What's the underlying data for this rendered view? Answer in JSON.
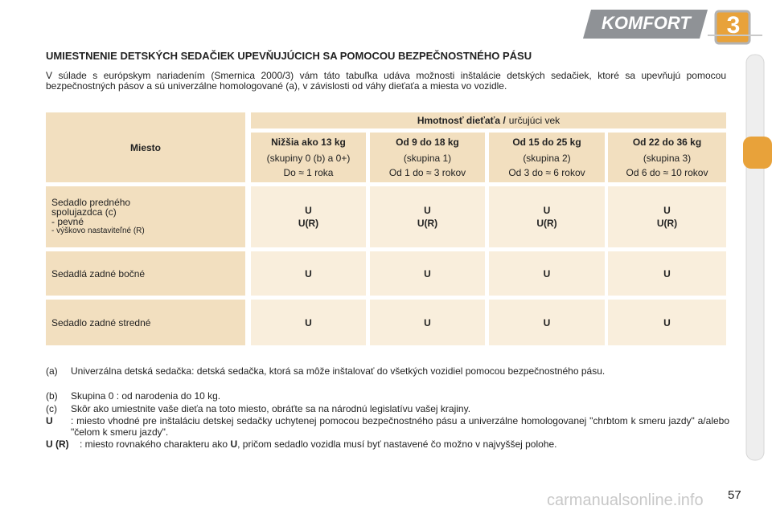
{
  "header": {
    "section": "KOMFORT",
    "chapter": "3"
  },
  "title": "UMIESTNENIE DETSKÝCH SEDAČIEK UPEVŇUJÚCICH SA POMOCOU BEZPEČNOSTNÉHO PÁSU",
  "intro": "V súlade s európskym nariadením (Smernica 2000/3) vám táto tabuľka udáva možnosti inštalácie detských sedačiek, ktoré sa upevňujú pomocou bezpečnostných pásov a sú univerzálne homologované (a), v závislosti od váhy dieťaťa a miesta vo vozidle.",
  "table": {
    "corner": "Miesto",
    "group_header": {
      "bold": "Hmotnosť dieťaťa /",
      "normal": "určujúci vek"
    },
    "columns": [
      {
        "title": "Nižšia ako 13 kg",
        "lines": [
          "(skupiny 0 (b) a 0+)",
          "Do ≈ 1 roka"
        ]
      },
      {
        "title": "Od 9 do 18 kg",
        "lines": [
          "(skupina 1)",
          "Od 1 do ≈ 3 rokov"
        ]
      },
      {
        "title": "Od 15 do 25 kg",
        "lines": [
          "(skupina 2)",
          "Od 3 do ≈ 6 rokov"
        ]
      },
      {
        "title": "Od 22 do 36 kg",
        "lines": [
          "(skupina 3)",
          "Od 6 do ≈ 10 rokov"
        ]
      }
    ],
    "rows": [
      {
        "label": [
          "Sedadlo predného",
          "spolujazdca (c)",
          "- pevné",
          "- výškovo nastaviteľné (R)"
        ],
        "cells": [
          [
            "U",
            "U(R)"
          ],
          [
            "U",
            "U(R)"
          ],
          [
            "U",
            "U(R)"
          ],
          [
            "U",
            "U(R)"
          ]
        ]
      },
      {
        "label": [
          "Sedadlá zadné bočné"
        ],
        "cells": [
          [
            "U"
          ],
          [
            "U"
          ],
          [
            "U"
          ],
          [
            "U"
          ]
        ]
      },
      {
        "label": [
          "Sedadlo zadné stredné"
        ],
        "cells": [
          [
            "U"
          ],
          [
            "U"
          ],
          [
            "U"
          ],
          [
            "U"
          ]
        ]
      }
    ]
  },
  "footnotes": [
    {
      "key": "(a)",
      "text": "Univerzálna detská sedačka: detská sedačka, ktorá sa môže inštalovať do všetkých vozidiel pomocou bezpečnostného pásu."
    },
    {
      "key": "(b)",
      "text": "Skupina 0 : od narodenia do 10 kg."
    },
    {
      "key": "(c)",
      "text": "Skôr ako umiestnite vaše dieťa na toto miesto, obráťte sa na národnú legislatívu vašej krajiny."
    },
    {
      "key": "U",
      "text": ": miesto vhodné pre inštaláciu detskej sedačky uchytenej pomocou bezpečnostného pásu a univerzálne homologovanej \"chrbtom k smeru jazdy\" a/alebo \"čelom k smeru jazdy\"."
    },
    {
      "key": "U (R)",
      "text": ": miesto rovnakého charakteru ako",
      "emphasis": "U",
      "text_end": ", pričom sedadlo vozidla musí byť nastavené čo možno v najvyššej polohe."
    }
  ],
  "page_number": "57",
  "watermark": "carmanualsonline.info"
}
